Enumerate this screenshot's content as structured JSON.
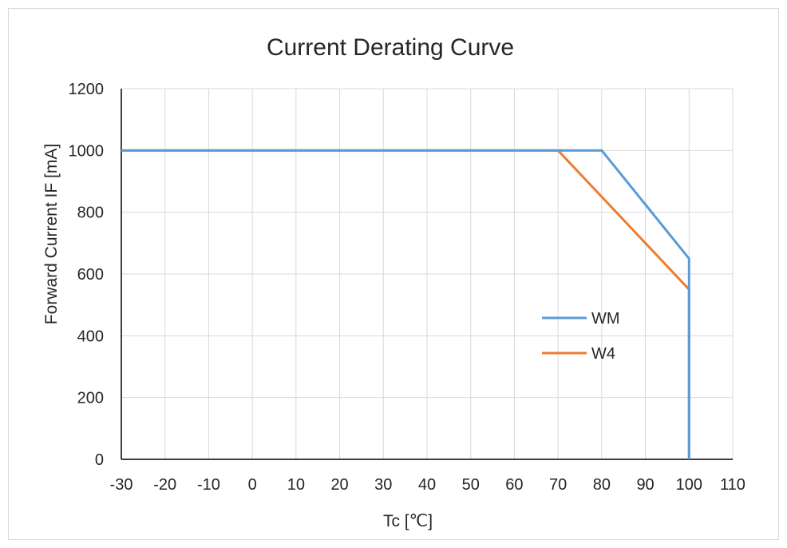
{
  "chart_data": {
    "type": "line",
    "title": "Current Derating Curve",
    "xlabel": "Tc [℃]",
    "ylabel": "Forward Current IF [mA]",
    "xlim": [
      -30,
      110
    ],
    "ylim": [
      0,
      1200
    ],
    "x_ticks": [
      -30,
      -20,
      -10,
      0,
      10,
      20,
      30,
      40,
      50,
      60,
      70,
      80,
      90,
      100,
      110
    ],
    "y_ticks": [
      0,
      200,
      400,
      600,
      800,
      1000,
      1200
    ],
    "x_tick_labels": [
      "-30",
      "-20",
      "-10",
      "0",
      "10",
      "20",
      "30",
      "40",
      "50",
      "60",
      "70",
      "80",
      "90",
      "100",
      "110"
    ],
    "y_tick_labels": [
      "0",
      "200",
      "400",
      "600",
      "800",
      "1000",
      "1200"
    ],
    "grid": true,
    "legend_position": "inside-right",
    "series": [
      {
        "name": "WM",
        "color": "#5b9bd5",
        "points": [
          [
            -30,
            1000
          ],
          [
            80,
            1000
          ],
          [
            100,
            650
          ],
          [
            100,
            0
          ]
        ]
      },
      {
        "name": "W4",
        "color": "#ed7d31",
        "points": [
          [
            -30,
            1000
          ],
          [
            70,
            1000
          ],
          [
            100,
            550
          ],
          [
            100,
            0
          ]
        ]
      }
    ]
  }
}
